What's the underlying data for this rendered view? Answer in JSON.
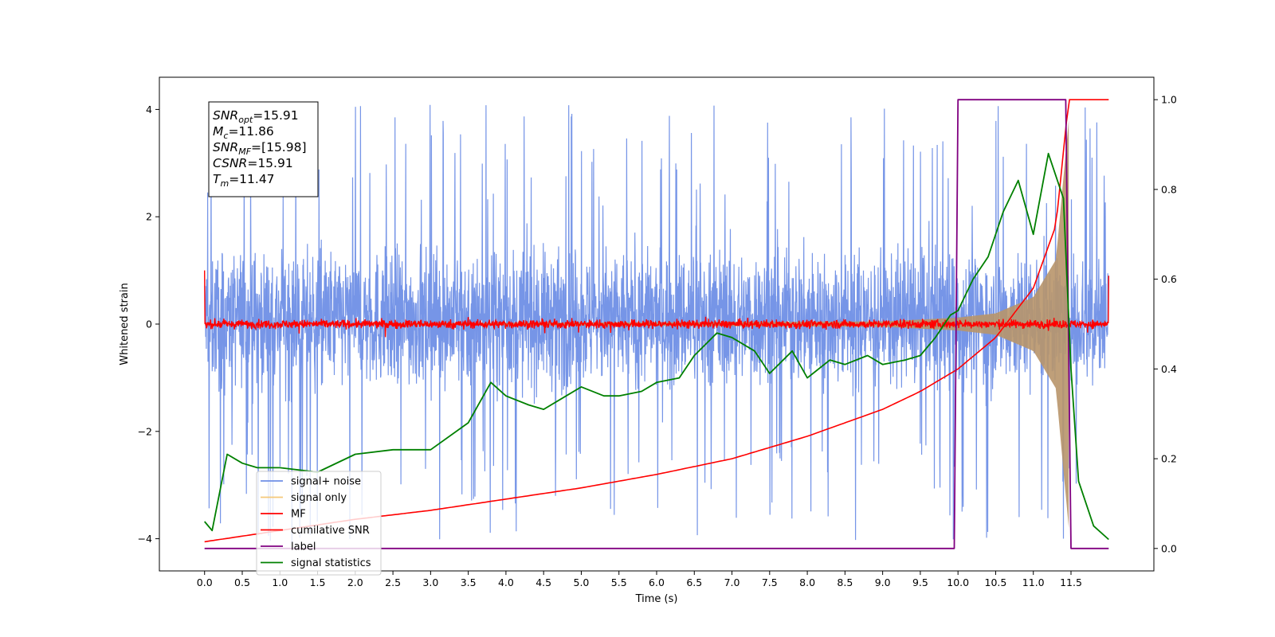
{
  "chart_data": {
    "type": "line",
    "xlabel": "Time (s)",
    "ylabel_left": "Whitened strain",
    "ylabel_right": "",
    "xlim": [
      -0.6,
      12.6
    ],
    "ylim_left": [
      -4.6,
      4.6
    ],
    "ylim_right": [
      -0.05,
      1.05
    ],
    "x_ticks": [
      0.0,
      0.5,
      1.0,
      1.5,
      2.0,
      2.5,
      3.0,
      3.5,
      4.0,
      4.5,
      5.0,
      5.5,
      6.0,
      6.5,
      7.0,
      7.5,
      8.0,
      8.5,
      9.0,
      9.5,
      10.0,
      10.5,
      11.0,
      11.5
    ],
    "x_tick_labels": [
      "0.0",
      "0.5",
      "1.0",
      "1.5",
      "2.0",
      "2.5",
      "3.0",
      "3.5",
      "4.0",
      "4.5",
      "5.0",
      "5.5",
      "6.0",
      "6.5",
      "7.0",
      "7.5",
      "8.0",
      "8.5",
      "9.0",
      "9.5",
      "10.0",
      "10.5",
      "11.0",
      "11.5"
    ],
    "y_left_ticks": [
      -4,
      -2,
      0,
      2,
      4
    ],
    "y_left_tick_labels": [
      "−4",
      "−2",
      "0",
      "2",
      "4"
    ],
    "y_right_ticks": [
      0.0,
      0.2,
      0.4,
      0.6,
      0.8,
      1.0
    ],
    "y_right_tick_labels": [
      "0.0",
      "0.2",
      "0.4",
      "0.6",
      "0.8",
      "1.0"
    ],
    "grid": false,
    "legend_position": "lower-left",
    "annotations": [
      {
        "sym": "SNR",
        "sub": "opt",
        "value": "=15.91"
      },
      {
        "sym": "M",
        "sub": "c",
        "value": "=11.86"
      },
      {
        "sym": "SNR",
        "sub": "MF",
        "value": "=[15.98]"
      },
      {
        "sym": "CSNR",
        "sub": "",
        "value": "=15.91"
      },
      {
        "sym": "T",
        "sub": "m",
        "value": "=11.47"
      }
    ],
    "series": [
      {
        "name": "signal+ noise",
        "color": "#6f8fe6",
        "axis": "left",
        "t_range": [
          0.0,
          12.0
        ],
        "approx_band": [
          -2.3,
          2.5
        ],
        "peak_range": [
          -4.1,
          4.1
        ]
      },
      {
        "name": "signal only",
        "color": "#f5c97a",
        "axis": "left",
        "t_range": [
          0.0,
          11.47
        ],
        "envelope": [
          [
            9.0,
            0.05
          ],
          [
            10.0,
            0.12
          ],
          [
            10.5,
            0.2
          ],
          [
            11.0,
            0.5
          ],
          [
            11.3,
            1.2
          ],
          [
            11.47,
            3.8
          ]
        ]
      },
      {
        "name": "MF",
        "color": "#ff0000",
        "axis": "left",
        "t_range": [
          0.0,
          12.0
        ],
        "approx_band": [
          -0.12,
          0.12
        ],
        "edges": {
          "start": 1.0,
          "end": 0.9
        }
      },
      {
        "name": "cumilative SNR",
        "color": "#ff0000",
        "axis": "right",
        "x": [
          0.0,
          1.0,
          2.0,
          3.0,
          4.0,
          5.0,
          6.0,
          7.0,
          8.0,
          9.0,
          9.5,
          10.0,
          10.5,
          11.0,
          11.3,
          11.47,
          11.5,
          12.0
        ],
        "y": [
          0.015,
          0.04,
          0.065,
          0.085,
          0.11,
          0.135,
          0.165,
          0.2,
          0.25,
          0.31,
          0.35,
          0.4,
          0.47,
          0.58,
          0.72,
          1.0,
          1.0,
          1.0
        ]
      },
      {
        "name": "label",
        "color": "#800080",
        "axis": "right",
        "x": [
          0.0,
          9.95,
          10.0,
          11.43,
          11.5,
          12.0
        ],
        "y": [
          0.0,
          0.0,
          1.0,
          1.0,
          0.0,
          0.0
        ]
      },
      {
        "name": "signal statistics",
        "color": "#008000",
        "axis": "right",
        "x": [
          0.0,
          0.1,
          0.3,
          0.5,
          0.7,
          1.0,
          1.5,
          2.0,
          2.5,
          3.0,
          3.5,
          3.8,
          4.0,
          4.3,
          4.5,
          4.8,
          5.0,
          5.3,
          5.5,
          5.8,
          6.0,
          6.3,
          6.5,
          6.8,
          7.0,
          7.3,
          7.5,
          7.8,
          8.0,
          8.3,
          8.5,
          8.8,
          9.0,
          9.3,
          9.5,
          9.7,
          9.9,
          10.0,
          10.2,
          10.4,
          10.6,
          10.8,
          11.0,
          11.2,
          11.4,
          11.5,
          11.6,
          11.8,
          12.0
        ],
        "y": [
          0.06,
          0.04,
          0.21,
          0.19,
          0.18,
          0.18,
          0.17,
          0.21,
          0.22,
          0.22,
          0.28,
          0.37,
          0.34,
          0.32,
          0.31,
          0.34,
          0.36,
          0.34,
          0.34,
          0.35,
          0.37,
          0.38,
          0.43,
          0.48,
          0.47,
          0.44,
          0.39,
          0.44,
          0.38,
          0.42,
          0.41,
          0.43,
          0.41,
          0.42,
          0.43,
          0.47,
          0.52,
          0.53,
          0.6,
          0.65,
          0.75,
          0.82,
          0.7,
          0.88,
          0.78,
          0.4,
          0.15,
          0.05,
          0.02
        ]
      }
    ]
  }
}
